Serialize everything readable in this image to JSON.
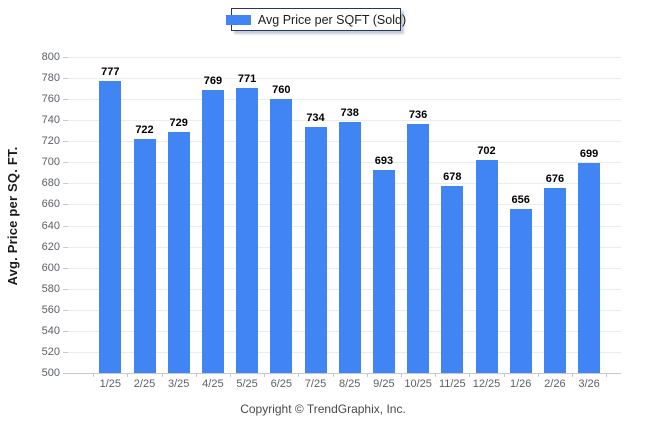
{
  "chart_data": {
    "type": "bar",
    "title": "",
    "xlabel": "",
    "ylabel": "Avg. Price per SQ. FT.",
    "categories": [
      "1/25",
      "2/25",
      "3/25",
      "4/25",
      "5/25",
      "6/25",
      "7/25",
      "8/25",
      "9/25",
      "10/25",
      "11/25",
      "12/25",
      "1/26",
      "2/26",
      "3/26"
    ],
    "series": [
      {
        "name": "Avg Price per SQFT (Sold)",
        "values": [
          777,
          722,
          729,
          769,
          771,
          760,
          734,
          738,
          693,
          736,
          678,
          702,
          656,
          676,
          699
        ]
      }
    ],
    "ylim": [
      500,
      800
    ],
    "ytick_step": 20,
    "grid": "horizontal",
    "legend_position": "top-center",
    "bar_color": "#4184f3",
    "value_labels_shown": true
  },
  "footer": {
    "text": "Copyright © TrendGraphix, Inc."
  },
  "colors": {
    "bar": "#4184f3",
    "legend_border": "#1f3864",
    "gridline": "#ececec",
    "axis_label": "#5a6168"
  }
}
